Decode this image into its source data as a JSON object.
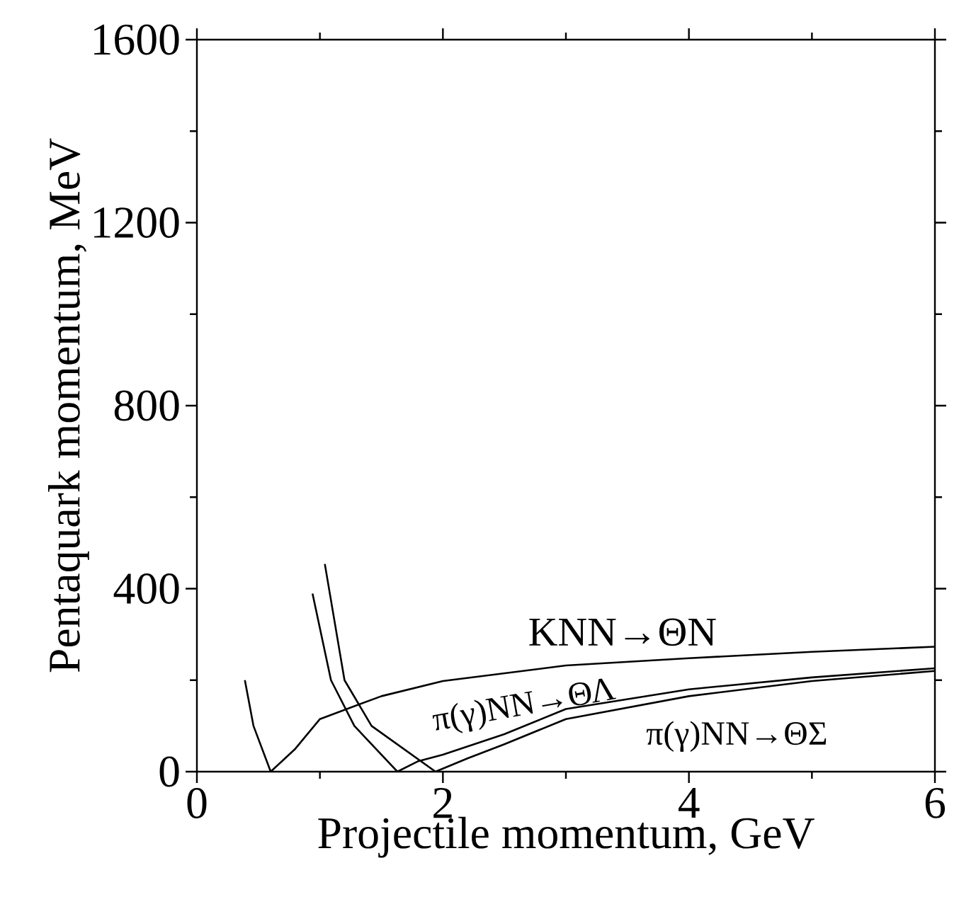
{
  "chart_data": {
    "type": "line",
    "xlabel": "Projectile momentum, GeV",
    "ylabel": "Pentaquark momentum, MeV",
    "xlim": [
      0,
      6
    ],
    "ylim": [
      0,
      1600
    ],
    "xticks": [
      0,
      2,
      4,
      6
    ],
    "yticks": [
      0,
      400,
      800,
      1200,
      1600
    ],
    "marker": "none",
    "line_style": "solid",
    "legend": false,
    "series": [
      {
        "name": "KNN→ΘN",
        "color": "#000000",
        "x": [
          0.39,
          0.46,
          0.6,
          0.8,
          1,
          1.5,
          2,
          3,
          4,
          5,
          6
        ],
        "values": [
          200,
          100,
          0,
          50,
          115,
          165,
          198,
          232,
          248,
          262,
          273
        ]
      },
      {
        "name": "π(γ)NN→ΘΛ",
        "color": "#000000",
        "x": [
          0.94,
          1.09,
          1.28,
          1.63,
          1.8,
          2,
          2.5,
          3,
          4,
          5,
          6
        ],
        "values": [
          389,
          200,
          100,
          0,
          23,
          37,
          82,
          137,
          180,
          206,
          226
        ]
      },
      {
        "name": "π(γ)NN→ΘΣ",
        "color": "#000000",
        "x": [
          1.04,
          1.2,
          1.42,
          1.94,
          2.2,
          2.5,
          3,
          4,
          5,
          6
        ],
        "values": [
          454,
          200,
          100,
          0,
          29,
          60,
          115,
          165,
          198,
          220
        ]
      }
    ]
  }
}
